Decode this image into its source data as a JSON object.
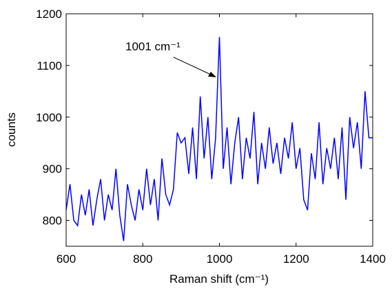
{
  "chart_data": {
    "type": "line",
    "xlabel": "Raman shift (cm⁻¹)",
    "ylabel": "counts",
    "annotation": "1001 cm⁻¹",
    "x": [
      600,
      610,
      620,
      630,
      640,
      650,
      660,
      670,
      680,
      690,
      700,
      710,
      720,
      730,
      740,
      750,
      760,
      770,
      780,
      790,
      800,
      810,
      820,
      830,
      840,
      850,
      860,
      870,
      880,
      890,
      900,
      910,
      920,
      930,
      940,
      950,
      960,
      970,
      980,
      990,
      1000,
      1010,
      1020,
      1030,
      1040,
      1050,
      1060,
      1070,
      1080,
      1090,
      1100,
      1110,
      1120,
      1130,
      1140,
      1150,
      1160,
      1170,
      1180,
      1190,
      1200,
      1210,
      1220,
      1230,
      1240,
      1250,
      1260,
      1270,
      1280,
      1290,
      1300,
      1310,
      1320,
      1330,
      1340,
      1350,
      1360,
      1370,
      1380,
      1390,
      1400
    ],
    "series": [
      {
        "color": "#0000ff",
        "values": [
          820,
          870,
          800,
          790,
          850,
          810,
          860,
          790,
          840,
          880,
          800,
          850,
          820,
          900,
          810,
          760,
          870,
          830,
          800,
          860,
          820,
          900,
          830,
          880,
          800,
          920,
          850,
          830,
          860,
          970,
          950,
          960,
          890,
          980,
          880,
          1040,
          920,
          1000,
          880,
          960,
          1155,
          900,
          980,
          870,
          950,
          1000,
          880,
          960,
          920,
          1010,
          870,
          950,
          900,
          980,
          910,
          950,
          890,
          960,
          920,
          990,
          900,
          940,
          840,
          820,
          930,
          880,
          990,
          870,
          940,
          900,
          960,
          880,
          980,
          840,
          1000,
          940,
          990,
          900,
          1050,
          960,
          960
        ]
      }
    ],
    "xlim": [
      600,
      1400
    ],
    "ylim": [
      750,
      1200
    ],
    "xticks": [
      600,
      800,
      1000,
      1200,
      1400
    ],
    "yticks": [
      800,
      900,
      1000,
      1100,
      1200
    ]
  }
}
